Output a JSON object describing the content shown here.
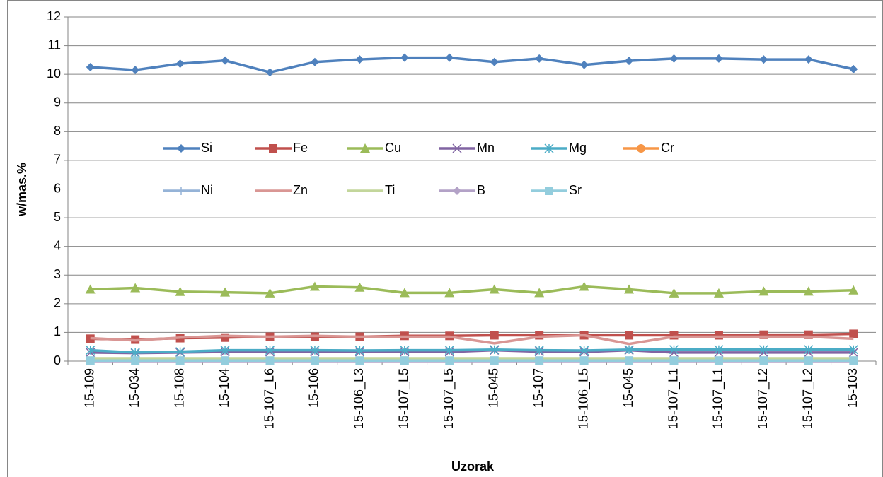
{
  "chart_data": {
    "type": "line",
    "x_label": "Uzorak",
    "y_label": "w/mas.%",
    "categories": [
      "15-109",
      "15-034",
      "15-108",
      "15-104",
      "15-107_L6",
      "15-106",
      "15-106_L3",
      "15-107_L5",
      "15-107_L5",
      "15-045",
      "15-107",
      "15-106_L5",
      "15-045",
      "15-107_L1",
      "15-107_L1",
      "15-107_L2",
      "15-107_L2",
      "15-103"
    ],
    "ylim": [
      0,
      12
    ],
    "yticks": [
      0,
      1,
      2,
      3,
      4,
      5,
      6,
      7,
      8,
      9,
      10,
      11,
      12
    ],
    "grid": true,
    "legend": "inside-middle",
    "series": [
      {
        "name": "Si",
        "color": "#4F81BD",
        "marker": "diamond",
        "values": [
          10.25,
          10.15,
          10.37,
          10.48,
          10.07,
          10.43,
          10.52,
          10.58,
          10.58,
          10.43,
          10.55,
          10.33,
          10.47,
          10.55,
          10.55,
          10.52,
          10.52,
          10.18
        ]
      },
      {
        "name": "Fe",
        "color": "#C0504D",
        "marker": "square",
        "values": [
          0.78,
          0.75,
          0.8,
          0.82,
          0.85,
          0.85,
          0.85,
          0.88,
          0.88,
          0.9,
          0.9,
          0.9,
          0.9,
          0.9,
          0.9,
          0.92,
          0.92,
          0.95
        ]
      },
      {
        "name": "Cu",
        "color": "#9BBB59",
        "marker": "triangle",
        "values": [
          2.5,
          2.55,
          2.42,
          2.4,
          2.37,
          2.6,
          2.57,
          2.38,
          2.38,
          2.5,
          2.38,
          2.6,
          2.5,
          2.37,
          2.37,
          2.43,
          2.43,
          2.47
        ]
      },
      {
        "name": "Mn",
        "color": "#8064A2",
        "marker": "x",
        "values": [
          0.3,
          0.28,
          0.3,
          0.32,
          0.32,
          0.32,
          0.32,
          0.32,
          0.32,
          0.38,
          0.33,
          0.32,
          0.38,
          0.3,
          0.3,
          0.3,
          0.3,
          0.3
        ]
      },
      {
        "name": "Mg",
        "color": "#4BACC6",
        "marker": "star",
        "values": [
          0.38,
          0.3,
          0.33,
          0.38,
          0.38,
          0.38,
          0.37,
          0.38,
          0.38,
          0.4,
          0.38,
          0.37,
          0.4,
          0.4,
          0.4,
          0.4,
          0.4,
          0.4
        ]
      },
      {
        "name": "Cr",
        "color": "#F79646",
        "marker": "circle",
        "values": [
          0.01,
          0.01,
          0.01,
          0.01,
          0.01,
          0.01,
          0.01,
          0.01,
          0.01,
          0.01,
          0.01,
          0.01,
          0.01,
          0.01,
          0.01,
          0.01,
          0.01,
          0.01
        ]
      },
      {
        "name": "Ni",
        "color": "#95B3D7",
        "marker": "plus",
        "values": [
          0.01,
          0.01,
          0.01,
          0.01,
          0.01,
          0.01,
          0.01,
          0.01,
          0.01,
          0.01,
          0.01,
          0.01,
          0.01,
          0.01,
          0.01,
          0.01,
          0.01,
          0.01
        ]
      },
      {
        "name": "Zn",
        "color": "#D99694",
        "marker": "none",
        "values": [
          0.8,
          0.72,
          0.82,
          0.88,
          0.85,
          0.88,
          0.85,
          0.85,
          0.85,
          0.62,
          0.85,
          0.9,
          0.6,
          0.85,
          0.85,
          0.85,
          0.85,
          0.78
        ]
      },
      {
        "name": "Ti",
        "color": "#C3D69B",
        "marker": "none",
        "values": [
          0.1,
          0.1,
          0.1,
          0.1,
          0.1,
          0.1,
          0.1,
          0.1,
          0.1,
          0.1,
          0.1,
          0.1,
          0.1,
          0.1,
          0.1,
          0.1,
          0.1,
          0.1
        ]
      },
      {
        "name": "B",
        "color": "#B3A2C7",
        "marker": "diamond",
        "values": [
          0,
          0,
          0,
          0,
          0,
          0,
          0,
          0,
          0,
          0,
          0,
          0,
          0,
          0,
          0,
          0,
          0,
          0
        ]
      },
      {
        "name": "Sr",
        "color": "#93CDDD",
        "marker": "square",
        "values": [
          0.02,
          0.02,
          0.02,
          0.02,
          0.02,
          0.02,
          0.02,
          0.02,
          0.02,
          0.02,
          0.02,
          0.02,
          0.02,
          0.02,
          0.02,
          0.02,
          0.02,
          0.02
        ]
      }
    ]
  }
}
